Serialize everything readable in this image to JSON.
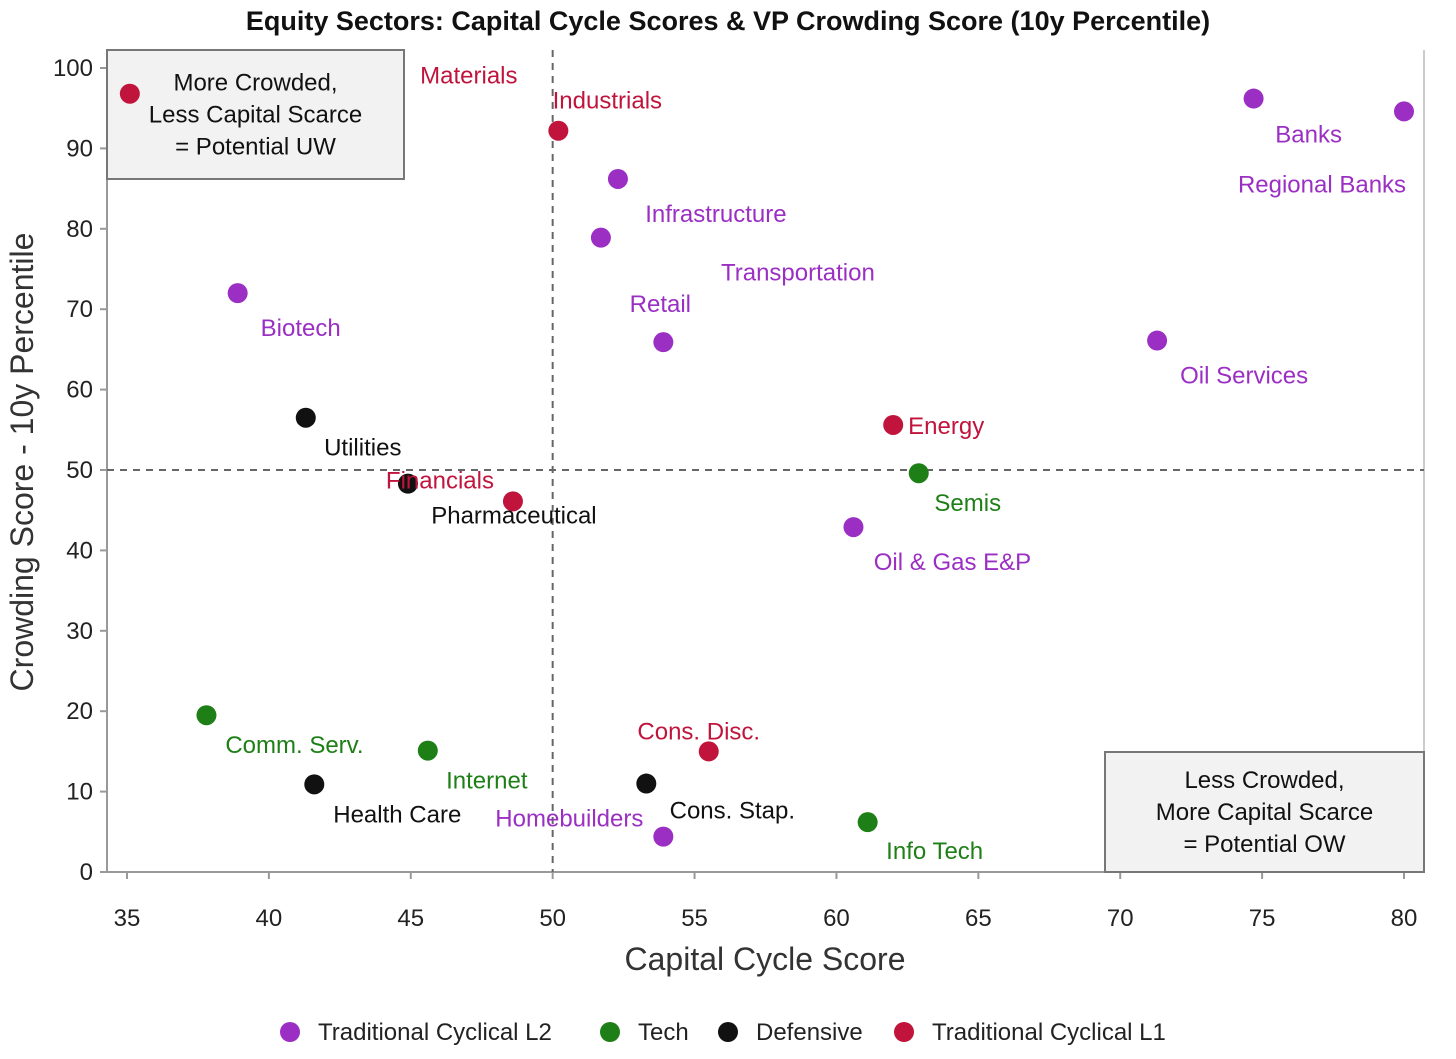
{
  "chart_data": {
    "type": "scatter",
    "title": "Equity Sectors: Capital Cycle Scores & VP Crowding Score (10y Percentile)",
    "xlabel": "Capital Cycle Score",
    "ylabel": "Crowding Score - 10y Percentile",
    "xlim": [
      35,
      80
    ],
    "ylim": [
      0,
      100
    ],
    "xticks": [
      35,
      40,
      45,
      50,
      55,
      60,
      65,
      70,
      75,
      80
    ],
    "yticks": [
      0,
      10,
      20,
      30,
      40,
      50,
      60,
      70,
      80,
      90,
      100
    ],
    "reference_lines": {
      "x": 50,
      "y": 50
    },
    "grid": false,
    "legend_position": "bottom",
    "series": [
      {
        "name": "Traditional Cyclical L2",
        "color": "#9b2fc4",
        "points": [
          {
            "label": "Banks",
            "x": 74.7,
            "y": 96.2
          },
          {
            "label": "Regional Banks",
            "x": 80.0,
            "y": 94.6
          },
          {
            "label": "Infrastructure",
            "x": 52.3,
            "y": 86.2
          },
          {
            "label": "Transportation",
            "x": 51.7,
            "y": 78.9
          },
          {
            "label": "Biotech",
            "x": 38.9,
            "y": 72.0
          },
          {
            "label": "Retail",
            "x": 53.9,
            "y": 65.9
          },
          {
            "label": "Oil Services",
            "x": 71.3,
            "y": 66.1
          },
          {
            "label": "Oil & Gas E&P",
            "x": 60.6,
            "y": 42.9
          },
          {
            "label": "Homebuilders",
            "x": 53.9,
            "y": 4.4
          }
        ]
      },
      {
        "name": "Tech",
        "color": "#1f7f17",
        "points": [
          {
            "label": "Semis",
            "x": 62.9,
            "y": 49.6
          },
          {
            "label": "Comm. Serv.",
            "x": 37.8,
            "y": 19.5
          },
          {
            "label": "Internet",
            "x": 45.6,
            "y": 15.1
          },
          {
            "label": "Info Tech",
            "x": 61.1,
            "y": 6.2
          }
        ]
      },
      {
        "name": "Defensive",
        "color": "#111111",
        "points": [
          {
            "label": "Utilities",
            "x": 41.3,
            "y": 56.5
          },
          {
            "label": "Pharmaceutical",
            "x": 44.9,
            "y": 48.3
          },
          {
            "label": "Health Care",
            "x": 41.6,
            "y": 10.9
          },
          {
            "label": "Cons. Stap.",
            "x": 53.3,
            "y": 11.0
          }
        ]
      },
      {
        "name": "Traditional Cyclical L1",
        "color": "#c0143c",
        "points": [
          {
            "label": "Materials",
            "x": 35.1,
            "y": 96.8
          },
          {
            "label": "Industrials",
            "x": 50.2,
            "y": 92.2
          },
          {
            "label": "Energy",
            "x": 62.0,
            "y": 55.6
          },
          {
            "label": "Financials",
            "x": 48.6,
            "y": 46.1
          },
          {
            "label": "Cons. Disc.",
            "x": 55.5,
            "y": 15.0
          }
        ]
      }
    ],
    "annotations": [
      {
        "lines": [
          "More Crowded,",
          "Less Capital Scarce",
          "= Potential UW"
        ],
        "position": "top-left"
      },
      {
        "lines": [
          "Less Crowded,",
          "More Capital Scarce",
          "= Potential OW"
        ],
        "position": "bottom-right"
      }
    ]
  }
}
